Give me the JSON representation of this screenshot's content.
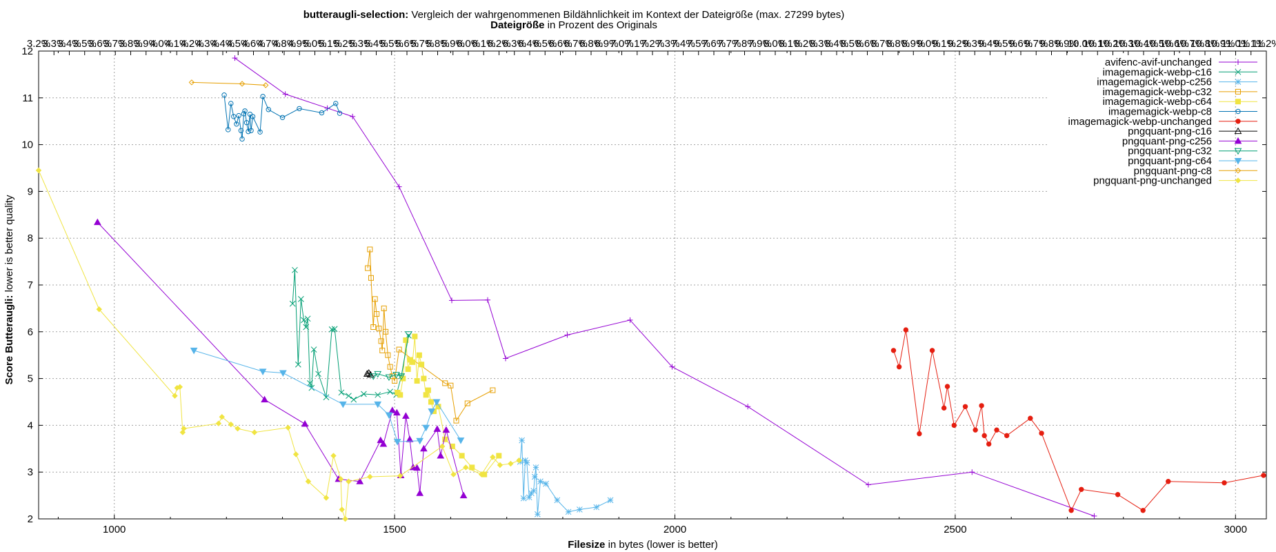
{
  "chart_data": {
    "type": "line",
    "title_bold": "butteraugli-selection:",
    "title_rest": " Vergleich der wahrgenommenen Bildähnlichkeit im Kontext der Dateigröße (max. 27299 bytes)",
    "subtitle_bold": "Dateigröße",
    "subtitle_rest": " in Prozent des Originals",
    "xlabel_bold": "Filesize",
    "xlabel_rest": " in bytes (lower is better)",
    "ylabel_bold": "Score Butteraugli:",
    "ylabel_rest": " lower is better quality",
    "xlim": [
      865,
      3055
    ],
    "ylim": [
      2,
      12
    ],
    "x_ticks": [
      1000,
      1500,
      2000,
      2500,
      3000
    ],
    "y_ticks": [
      2,
      3,
      4,
      5,
      6,
      7,
      8,
      9,
      10,
      11,
      12
    ],
    "top_tick_start_percent": 3.2,
    "top_tick_end_percent": 11.2,
    "top_tick_step_percent": 0.1,
    "grid": true,
    "legend_position": "top-right",
    "series": [
      {
        "name": "avifenc-avif-unchanged",
        "color": "#9400d3",
        "marker": "plus",
        "x": [
          1215,
          1305,
          1380,
          1425,
          1508,
          1602,
          1666,
          1698,
          1808,
          1920,
          1995,
          2130,
          2345,
          2530,
          2748
        ],
        "y": [
          11.85,
          11.08,
          10.78,
          10.6,
          9.1,
          6.67,
          6.68,
          5.43,
          5.93,
          6.25,
          5.25,
          4.4,
          2.73,
          3.0,
          2.06
        ]
      },
      {
        "name": "imagemagick-webp-c16",
        "color": "#009e73",
        "marker": "x",
        "x": [
          1318,
          1322,
          1328,
          1333,
          1338,
          1342,
          1345,
          1349,
          1352,
          1356,
          1364,
          1378,
          1388,
          1393,
          1405,
          1418,
          1427,
          1445,
          1470,
          1492,
          1503,
          1512,
          1525
        ],
        "y": [
          6.6,
          7.32,
          5.3,
          6.7,
          6.25,
          6.1,
          6.28,
          4.9,
          4.8,
          5.62,
          5.1,
          4.6,
          6.05,
          6.06,
          4.7,
          4.63,
          4.55,
          4.67,
          4.65,
          4.72,
          4.65,
          5.05,
          5.92
        ]
      },
      {
        "name": "imagemagick-webp-c256",
        "color": "#56b4e9",
        "marker": "star",
        "x": [
          1724,
          1727,
          1730,
          1733,
          1736,
          1740,
          1744,
          1748,
          1750,
          1752,
          1755,
          1760,
          1770,
          1790,
          1810,
          1830,
          1860,
          1885
        ],
        "y": [
          3.22,
          3.68,
          2.44,
          3.25,
          3.2,
          2.46,
          2.55,
          2.6,
          2.9,
          3.1,
          2.1,
          2.8,
          2.75,
          2.4,
          2.15,
          2.2,
          2.25,
          2.4
        ]
      },
      {
        "name": "imagemagick-webp-c32",
        "color": "#e69f00",
        "marker": "square",
        "x": [
          1452,
          1456,
          1458,
          1462,
          1465,
          1468,
          1472,
          1476,
          1478,
          1481,
          1484,
          1488,
          1492,
          1496,
          1500,
          1508,
          1590,
          1600,
          1610,
          1630,
          1675
        ],
        "y": [
          7.36,
          7.76,
          7.15,
          6.1,
          6.7,
          6.38,
          6.07,
          5.8,
          5.6,
          6.5,
          6.0,
          5.5,
          5.25,
          5.05,
          4.95,
          5.62,
          4.9,
          4.85,
          4.1,
          4.47,
          4.75
        ]
      },
      {
        "name": "imagemagick-webp-c64",
        "color": "#f0e442",
        "marker": "fsquare",
        "x": [
          1505,
          1510,
          1515,
          1520,
          1524,
          1528,
          1532,
          1536,
          1540,
          1544,
          1548,
          1552,
          1556,
          1560,
          1565,
          1570,
          1578,
          1590,
          1603,
          1620,
          1638,
          1660,
          1686
        ],
        "y": [
          4.7,
          4.65,
          5.0,
          5.82,
          5.2,
          5.4,
          5.35,
          5.9,
          4.95,
          5.5,
          5.3,
          5.0,
          4.65,
          4.75,
          4.5,
          4.3,
          4.4,
          3.7,
          3.55,
          3.35,
          3.1,
          2.95,
          3.35
        ]
      },
      {
        "name": "imagemagick-webp-c8",
        "color": "#0072b2",
        "marker": "circle",
        "x": [
          1196,
          1203,
          1208,
          1213,
          1218,
          1222,
          1226,
          1228,
          1231,
          1233,
          1236,
          1239,
          1242,
          1244,
          1247,
          1260,
          1265,
          1275,
          1300,
          1330,
          1370,
          1395,
          1402
        ],
        "y": [
          11.06,
          10.32,
          10.88,
          10.6,
          10.44,
          10.62,
          10.3,
          10.12,
          10.66,
          10.72,
          10.47,
          10.28,
          10.65,
          10.3,
          10.6,
          10.27,
          11.03,
          10.75,
          10.58,
          10.77,
          10.68,
          10.88,
          10.67
        ]
      },
      {
        "name": "imagemagick-webp-unchanged",
        "color": "#e51e10",
        "marker": "fcircle",
        "x": [
          2390,
          2400,
          2412,
          2436,
          2459,
          2480,
          2486,
          2498,
          2518,
          2536,
          2547,
          2552,
          2560,
          2574,
          2592,
          2634,
          2654,
          2707,
          2725,
          2790,
          2835,
          2880,
          2980,
          3050
        ],
        "y": [
          5.6,
          5.25,
          6.04,
          3.82,
          5.6,
          4.37,
          4.83,
          4.0,
          4.4,
          3.9,
          4.42,
          3.78,
          3.6,
          3.9,
          3.78,
          4.15,
          3.83,
          2.18,
          2.63,
          2.52,
          2.18,
          2.8,
          2.77,
          2.93
        ]
      },
      {
        "name": "pngquant-png-c16",
        "color": "#000000",
        "marker": "triangle",
        "x": [
          1451,
          1454,
          1457
        ],
        "y": [
          5.1,
          5.12,
          5.08
        ]
      },
      {
        "name": "pngquant-png-c256",
        "color": "#9400d3",
        "marker": "ftriangle",
        "x": [
          970,
          1268,
          1340,
          1400,
          1438,
          1475,
          1480,
          1496,
          1504,
          1511,
          1520,
          1527,
          1533,
          1540,
          1545,
          1552,
          1576,
          1582,
          1592,
          1623
        ],
        "y": [
          8.34,
          4.55,
          4.03,
          2.85,
          2.8,
          3.68,
          3.6,
          4.32,
          4.27,
          2.93,
          4.2,
          3.7,
          3.1,
          3.09,
          2.55,
          3.5,
          3.92,
          3.35,
          3.9,
          2.5
        ]
      },
      {
        "name": "pngquant-png-c32",
        "color": "#009e73",
        "marker": "dtriangle",
        "x": [
          1462,
          1470,
          1490,
          1503,
          1512,
          1525
        ],
        "y": [
          5.05,
          5.1,
          5.03,
          5.08,
          5.05,
          5.95
        ]
      },
      {
        "name": "pngquant-png-c64",
        "color": "#56b4e9",
        "marker": "fdtriangle",
        "x": [
          1142,
          1265,
          1301,
          1408,
          1470,
          1490,
          1505,
          1545,
          1556,
          1566,
          1575,
          1618
        ],
        "y": [
          5.6,
          5.15,
          5.12,
          4.45,
          4.45,
          4.22,
          3.65,
          3.67,
          3.95,
          4.3,
          4.5,
          3.68
        ]
      },
      {
        "name": "pngquant-png-c8",
        "color": "#e69f00",
        "marker": "diamond",
        "x": [
          1138,
          1228,
          1270
        ],
        "y": [
          11.33,
          11.3,
          11.27
        ]
      },
      {
        "name": "pngquant-png-unchanged",
        "color": "#f0e442",
        "marker": "fdiamond",
        "x": [
          865,
          973,
          1108,
          1112,
          1117,
          1122,
          1124,
          1186,
          1192,
          1208,
          1220,
          1250,
          1310,
          1324,
          1346,
          1378,
          1391,
          1404,
          1406,
          1412,
          1418,
          1456,
          1510,
          1585,
          1605,
          1627,
          1655,
          1675,
          1688,
          1707,
          1722
        ],
        "y": [
          9.45,
          6.48,
          4.63,
          4.8,
          4.82,
          3.85,
          3.93,
          4.04,
          4.18,
          4.02,
          3.93,
          3.85,
          3.95,
          3.38,
          2.8,
          2.45,
          3.35,
          2.85,
          2.2,
          2.0,
          2.8,
          2.9,
          2.92,
          3.55,
          2.95,
          3.1,
          2.95,
          3.32,
          3.15,
          3.18,
          3.25
        ]
      }
    ]
  }
}
